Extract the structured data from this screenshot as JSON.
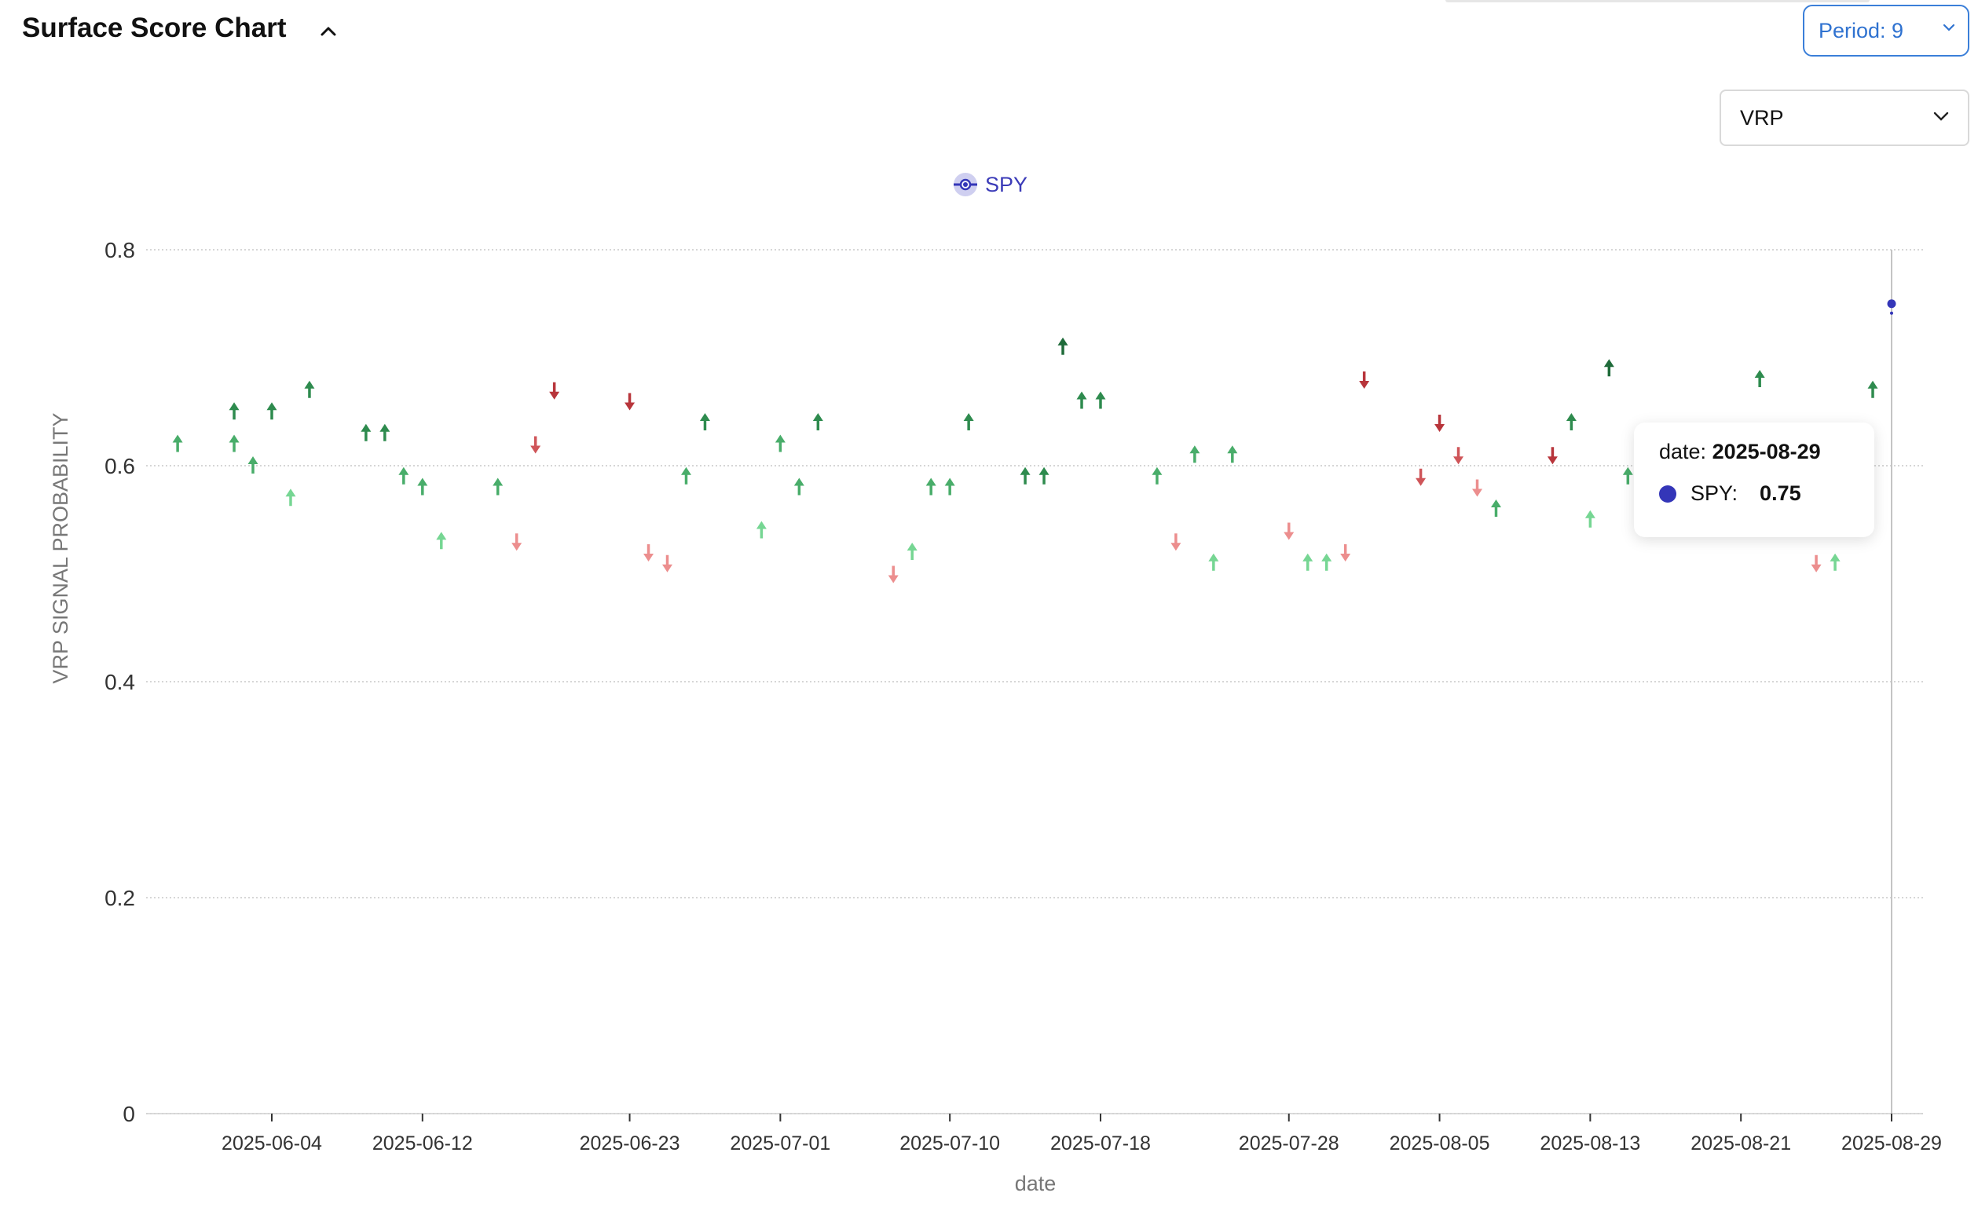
{
  "header": {
    "title": "Surface Score Chart",
    "period_label": "Period: 9",
    "metric_label": "VRP"
  },
  "legend": {
    "series_name": "SPY"
  },
  "tooltip": {
    "date_prefix": "date:",
    "date": "2025-08-29",
    "series_label": "SPY:",
    "value": "0.75"
  },
  "colors": {
    "series": "#3436b8",
    "up_strong": "#2e8b4e",
    "up_light": "#6fd08c",
    "down_strong": "#c0393f",
    "down_light": "#eb8c8c",
    "accent": "#3b7fd9"
  },
  "chart_data": {
    "type": "scatter",
    "title": "",
    "xlabel": "date",
    "ylabel": "VRP SIGNAL PROBABILITY",
    "ylim": [
      0,
      0.8
    ],
    "yticks": [
      0,
      0.2,
      0.4,
      0.6,
      0.8
    ],
    "xticks": [
      "2025-06-04",
      "2025-06-12",
      "2025-06-23",
      "2025-07-01",
      "2025-07-10",
      "2025-07-18",
      "2025-07-28",
      "2025-08-05",
      "2025-08-13",
      "2025-08-21",
      "2025-08-29"
    ],
    "grid": "horizontal dotted",
    "legend_position": "top-center",
    "series": [
      {
        "name": "SPY",
        "last_point": {
          "x": "2025-08-29",
          "y": 0.75
        }
      }
    ],
    "signals": [
      {
        "x": "2025-05-30",
        "y": 0.62,
        "dir": "up",
        "strength": "medium"
      },
      {
        "x": "2025-06-02",
        "y": 0.65,
        "dir": "up",
        "strength": "strong"
      },
      {
        "x": "2025-06-02",
        "y": 0.62,
        "dir": "up",
        "strength": "medium"
      },
      {
        "x": "2025-06-03",
        "y": 0.6,
        "dir": "up",
        "strength": "medium"
      },
      {
        "x": "2025-06-04",
        "y": 0.65,
        "dir": "up",
        "strength": "strong"
      },
      {
        "x": "2025-06-05",
        "y": 0.57,
        "dir": "up",
        "strength": "light"
      },
      {
        "x": "2025-06-06",
        "y": 0.67,
        "dir": "up",
        "strength": "strong"
      },
      {
        "x": "2025-06-09",
        "y": 0.63,
        "dir": "up",
        "strength": "strong"
      },
      {
        "x": "2025-06-10",
        "y": 0.63,
        "dir": "up",
        "strength": "strong"
      },
      {
        "x": "2025-06-11",
        "y": 0.59,
        "dir": "up",
        "strength": "medium"
      },
      {
        "x": "2025-06-12",
        "y": 0.58,
        "dir": "up",
        "strength": "medium"
      },
      {
        "x": "2025-06-13",
        "y": 0.53,
        "dir": "up",
        "strength": "light"
      },
      {
        "x": "2025-06-16",
        "y": 0.58,
        "dir": "up",
        "strength": "medium"
      },
      {
        "x": "2025-06-17",
        "y": 0.53,
        "dir": "down",
        "strength": "light"
      },
      {
        "x": "2025-06-18",
        "y": 0.62,
        "dir": "down",
        "strength": "medium"
      },
      {
        "x": "2025-06-19",
        "y": 0.67,
        "dir": "down",
        "strength": "strong"
      },
      {
        "x": "2025-06-23",
        "y": 0.66,
        "dir": "down",
        "strength": "strong"
      },
      {
        "x": "2025-06-24",
        "y": 0.52,
        "dir": "down",
        "strength": "light"
      },
      {
        "x": "2025-06-25",
        "y": 0.51,
        "dir": "down",
        "strength": "light"
      },
      {
        "x": "2025-06-26",
        "y": 0.59,
        "dir": "up",
        "strength": "medium"
      },
      {
        "x": "2025-06-27",
        "y": 0.64,
        "dir": "up",
        "strength": "strong"
      },
      {
        "x": "2025-06-30",
        "y": 0.54,
        "dir": "up",
        "strength": "light"
      },
      {
        "x": "2025-07-01",
        "y": 0.62,
        "dir": "up",
        "strength": "medium"
      },
      {
        "x": "2025-07-02",
        "y": 0.58,
        "dir": "up",
        "strength": "medium"
      },
      {
        "x": "2025-07-03",
        "y": 0.64,
        "dir": "up",
        "strength": "strong"
      },
      {
        "x": "2025-07-07",
        "y": 0.5,
        "dir": "down",
        "strength": "light"
      },
      {
        "x": "2025-07-08",
        "y": 0.52,
        "dir": "up",
        "strength": "light"
      },
      {
        "x": "2025-07-09",
        "y": 0.58,
        "dir": "up",
        "strength": "medium"
      },
      {
        "x": "2025-07-10",
        "y": 0.58,
        "dir": "up",
        "strength": "medium"
      },
      {
        "x": "2025-07-11",
        "y": 0.64,
        "dir": "up",
        "strength": "strong"
      },
      {
        "x": "2025-07-14",
        "y": 0.59,
        "dir": "up",
        "strength": "strong"
      },
      {
        "x": "2025-07-15",
        "y": 0.59,
        "dir": "up",
        "strength": "strong"
      },
      {
        "x": "2025-07-16",
        "y": 0.71,
        "dir": "up",
        "strength": "dark"
      },
      {
        "x": "2025-07-17",
        "y": 0.66,
        "dir": "up",
        "strength": "strong"
      },
      {
        "x": "2025-07-18",
        "y": 0.66,
        "dir": "up",
        "strength": "strong"
      },
      {
        "x": "2025-07-21",
        "y": 0.59,
        "dir": "up",
        "strength": "medium"
      },
      {
        "x": "2025-07-22",
        "y": 0.53,
        "dir": "down",
        "strength": "light"
      },
      {
        "x": "2025-07-23",
        "y": 0.61,
        "dir": "up",
        "strength": "medium"
      },
      {
        "x": "2025-07-24",
        "y": 0.51,
        "dir": "up",
        "strength": "light"
      },
      {
        "x": "2025-07-25",
        "y": 0.61,
        "dir": "up",
        "strength": "medium"
      },
      {
        "x": "2025-07-28",
        "y": 0.54,
        "dir": "down",
        "strength": "light"
      },
      {
        "x": "2025-07-29",
        "y": 0.51,
        "dir": "up",
        "strength": "light"
      },
      {
        "x": "2025-07-30",
        "y": 0.51,
        "dir": "up",
        "strength": "light"
      },
      {
        "x": "2025-07-31",
        "y": 0.52,
        "dir": "down",
        "strength": "light"
      },
      {
        "x": "2025-08-01",
        "y": 0.68,
        "dir": "down",
        "strength": "strong"
      },
      {
        "x": "2025-08-04",
        "y": 0.59,
        "dir": "down",
        "strength": "medium"
      },
      {
        "x": "2025-08-05",
        "y": 0.64,
        "dir": "down",
        "strength": "strong"
      },
      {
        "x": "2025-08-06",
        "y": 0.61,
        "dir": "down",
        "strength": "medium"
      },
      {
        "x": "2025-08-07",
        "y": 0.58,
        "dir": "down",
        "strength": "light"
      },
      {
        "x": "2025-08-08",
        "y": 0.56,
        "dir": "up",
        "strength": "medium"
      },
      {
        "x": "2025-08-11",
        "y": 0.61,
        "dir": "down",
        "strength": "strong"
      },
      {
        "x": "2025-08-12",
        "y": 0.64,
        "dir": "up",
        "strength": "strong"
      },
      {
        "x": "2025-08-13",
        "y": 0.55,
        "dir": "up",
        "strength": "light"
      },
      {
        "x": "2025-08-14",
        "y": 0.69,
        "dir": "up",
        "strength": "dark"
      },
      {
        "x": "2025-08-15",
        "y": 0.59,
        "dir": "up",
        "strength": "medium"
      },
      {
        "x": "2025-08-22",
        "y": 0.68,
        "dir": "up",
        "strength": "strong"
      },
      {
        "x": "2025-08-25",
        "y": 0.51,
        "dir": "down",
        "strength": "light"
      },
      {
        "x": "2025-08-26",
        "y": 0.51,
        "dir": "up",
        "strength": "light"
      },
      {
        "x": "2025-08-28",
        "y": 0.67,
        "dir": "up",
        "strength": "strong"
      }
    ]
  }
}
